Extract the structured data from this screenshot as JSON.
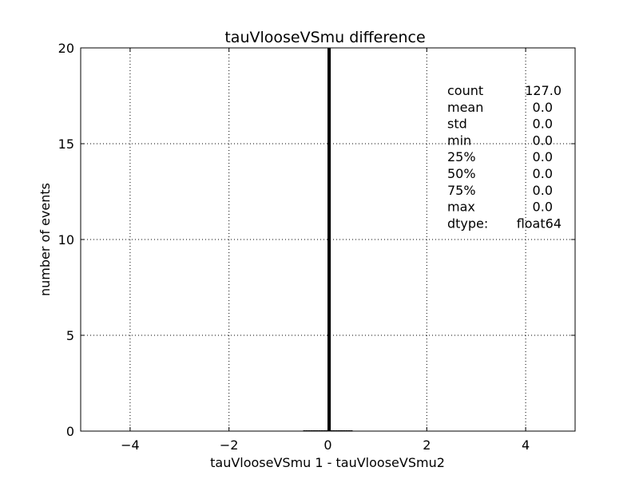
{
  "chart_data": {
    "type": "bar",
    "title": "tauVlooseVSmu difference",
    "xlabel": "tauVlooseVSmu 1 - tauVlooseVSmu2",
    "ylabel": "number of events",
    "xlim": [
      -5,
      5
    ],
    "ylim": [
      0,
      20
    ],
    "xticks": [
      -4,
      -2,
      0,
      2,
      4
    ],
    "xtick_labels": [
      "−4",
      "−2",
      "0",
      "2",
      "4"
    ],
    "yticks": [
      0,
      5,
      10,
      15,
      20
    ],
    "ytick_labels": [
      "0",
      "5",
      "10",
      "15",
      "20"
    ],
    "grid": true,
    "grid_style": "dotted",
    "bin_edges": [
      -0.5,
      -0.45,
      -0.4,
      -0.35,
      -0.3,
      -0.25,
      -0.2,
      -0.15,
      -0.1,
      -0.05,
      0.0,
      0.05,
      0.1,
      0.15,
      0.2,
      0.25,
      0.3,
      0.35,
      0.4,
      0.45,
      0.5
    ],
    "counts": [
      0,
      0,
      0,
      0,
      0,
      0,
      0,
      0,
      0,
      0,
      127,
      0,
      0,
      0,
      0,
      0,
      0,
      0,
      0,
      0
    ],
    "bar_color": "#000000",
    "stats": [
      {
        "label": "count",
        "value": "127.0"
      },
      {
        "label": "mean",
        "value": "0.0"
      },
      {
        "label": "std",
        "value": "0.0"
      },
      {
        "label": "min",
        "value": "0.0"
      },
      {
        "label": "25%",
        "value": "0.0"
      },
      {
        "label": "50%",
        "value": "0.0"
      },
      {
        "label": "75%",
        "value": "0.0"
      },
      {
        "label": "max",
        "value": "0.0"
      },
      {
        "label": "dtype:",
        "value": "float64"
      }
    ]
  }
}
